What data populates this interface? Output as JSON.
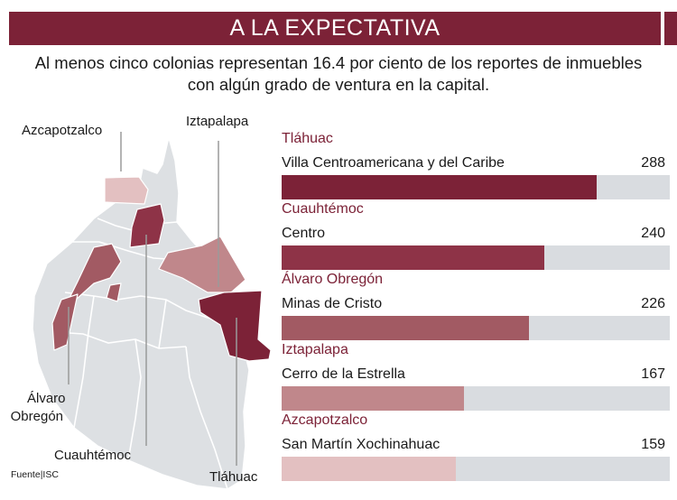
{
  "header": {
    "title": "A LA EXPECTATIVA"
  },
  "subtitle": {
    "line1": "Al menos cinco colonias representan 16.4 por ciento de los reportes de inmuebles",
    "line2": "con algún grado de ventura en la capital."
  },
  "map": {
    "labels": {
      "azcapotzalco": "Azcapotzalco",
      "iztapalapa": "Iztapalapa",
      "alvaro_obregon_1": "Álvaro",
      "alvaro_obregon_2": "Obregón",
      "cuauhtemoc": "Cuauhtémoc",
      "tlahuac": "Tláhuac"
    },
    "colors": {
      "base": "#dde0e3",
      "outline": "#ffffff",
      "tlahuac": "#7c2237",
      "cuauhtemoc": "#8e3347",
      "alvaro_obregon": "#a25a63",
      "iztapalapa": "#c0878b",
      "azcapotzalco": "#e3c0c1",
      "leader": "#9a9a9a"
    }
  },
  "source": "Fuente|ISC",
  "chart_data": {
    "type": "bar",
    "orientation": "horizontal",
    "title": "A LA EXPECTATIVA",
    "subtitle": "Al menos cinco colonias representan 16.4 por ciento de los reportes de inmuebles con algún grado de ventura en la capital.",
    "xlim": [
      0,
      355
    ],
    "bars": [
      {
        "borough": "Tláhuac",
        "colony": "Villa Centroamericana y del Caribe",
        "value": 288,
        "color": "#7c2237"
      },
      {
        "borough": "Cuauhtémoc",
        "colony": "Centro",
        "value": 240,
        "color": "#8e3347"
      },
      {
        "borough": "Álvaro Obregón",
        "colony": "Minas de Cristo",
        "value": 226,
        "color": "#a25a63"
      },
      {
        "borough": "Iztapalapa",
        "colony": "Cerro de la Estrella",
        "value": 167,
        "color": "#c0878b"
      },
      {
        "borough": "Azcapotzalco",
        "colony": "San Martín Xochinahuac",
        "value": 159,
        "color": "#e3c0c1"
      }
    ],
    "track_color": "#d9dce0",
    "grid": false,
    "legend": "none"
  }
}
